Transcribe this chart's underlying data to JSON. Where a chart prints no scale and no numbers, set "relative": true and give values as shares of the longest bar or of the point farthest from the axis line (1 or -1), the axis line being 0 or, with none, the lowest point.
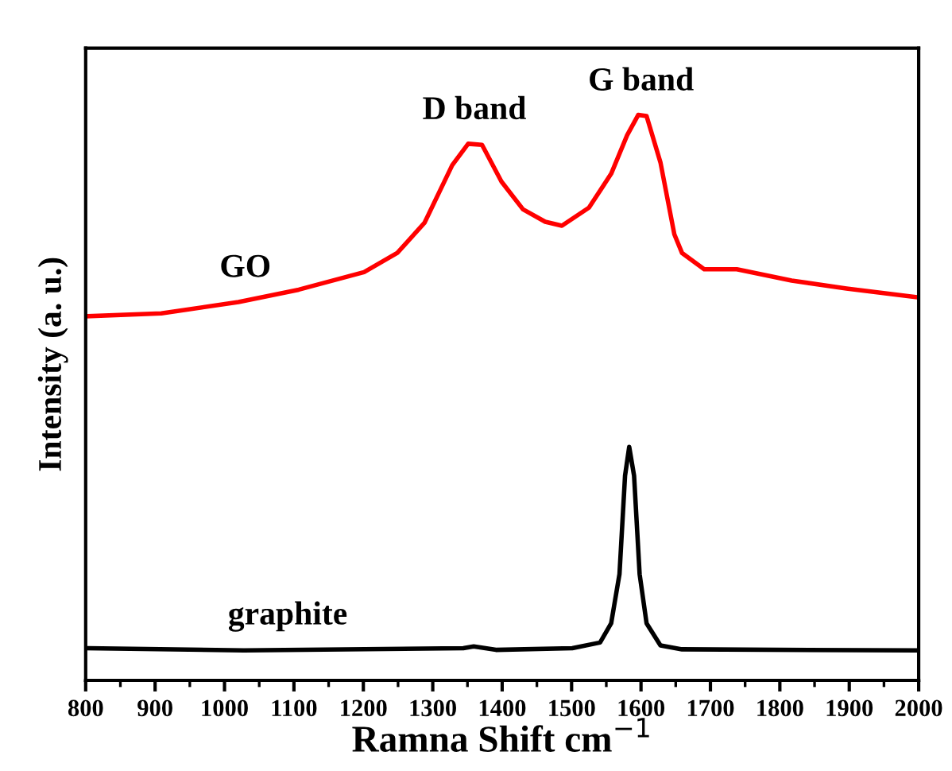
{
  "chart_data": {
    "type": "line",
    "relative": true,
    "xlabel": "Ramna Shift cm$^{−1}$",
    "ylabel": "Intensity (a. u.)",
    "xlim": [
      800,
      2000
    ],
    "xticks": [
      800,
      900,
      1000,
      1100,
      1200,
      1300,
      1400,
      1500,
      1600,
      1700,
      1800,
      1900,
      2000
    ],
    "grid": false,
    "marker": "none",
    "line_style": "solid",
    "series": [
      {
        "color": "#ff0000",
        "x": [
          803,
          909,
          1020,
          1107,
          1201,
          1249,
          1288,
          1328,
          1351,
          1371,
          1399,
          1430,
          1462,
          1486,
          1525,
          1557,
          1580,
          1596,
          1608,
          1628,
          1648,
          1659,
          1691,
          1738,
          1817,
          1896,
          1995
        ],
        "values": [
          0.644,
          0.649,
          0.669,
          0.691,
          0.722,
          0.756,
          0.809,
          0.911,
          0.949,
          0.947,
          0.882,
          0.833,
          0.811,
          0.804,
          0.836,
          0.896,
          0.964,
          1.0,
          0.998,
          0.916,
          0.789,
          0.756,
          0.727,
          0.727,
          0.707,
          0.693,
          0.678
        ]
      },
      {
        "color": "#000000",
        "x": [
          803,
          1028,
          1344,
          1359,
          1391,
          1501,
          1541,
          1557,
          1569,
          1577,
          1583,
          1590,
          1598,
          1608,
          1628,
          1659,
          1995
        ],
        "values": [
          0.057,
          0.053,
          0.057,
          0.06,
          0.054,
          0.057,
          0.067,
          0.101,
          0.188,
          0.362,
          0.413,
          0.362,
          0.188,
          0.101,
          0.062,
          0.055,
          0.053
        ]
      }
    ],
    "annotations": [
      {
        "text": "GO",
        "x": 1030,
        "y": 0.67
      },
      {
        "text": "D band",
        "x": 1360,
        "y": 0.949
      },
      {
        "text": "G band",
        "x": 1600,
        "y": 1.0
      },
      {
        "text": "graphite",
        "x": 1091,
        "y": 0.055
      }
    ]
  }
}
